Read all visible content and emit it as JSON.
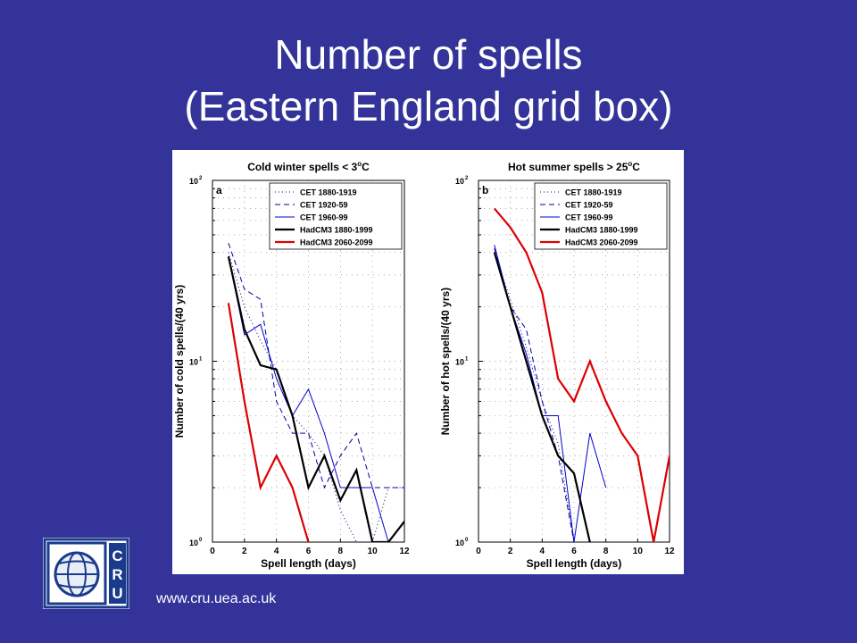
{
  "slide": {
    "title_line1": "Number of spells",
    "title_line2": "(Eastern England grid box)",
    "url": "www.cru.uea.ac.uk",
    "logo_text": [
      "C",
      "R",
      "U"
    ]
  },
  "chart_data": [
    {
      "type": "line",
      "panel_label": "a",
      "title": "Cold winter spells < 3°C",
      "title_parts": [
        "Cold winter spells < 3",
        "o",
        "C"
      ],
      "xlabel": "Spell length (days)",
      "ylabel": "Number of cold spells/(40 yrs)",
      "xlim": [
        0,
        12
      ],
      "ylim": [
        1,
        100
      ],
      "yscale": "log",
      "grid": true,
      "legend_position": "top-right",
      "xticks": [
        0,
        2,
        4,
        6,
        8,
        10,
        12
      ],
      "yticks": [
        {
          "base": "10",
          "exp": "0",
          "value": 1
        },
        {
          "base": "10",
          "exp": "1",
          "value": 10
        },
        {
          "base": "10",
          "exp": "2",
          "value": 100
        }
      ],
      "series": [
        {
          "name": "CET 1880-1919",
          "color": "#000080",
          "style": "dotted",
          "x": [
            1,
            2,
            3,
            4,
            5,
            6,
            7,
            8,
            9,
            10,
            11,
            12
          ],
          "y": [
            40,
            20,
            13,
            9,
            5,
            4,
            3,
            1.5,
            1,
            1,
            2,
            2
          ]
        },
        {
          "name": "CET 1920-59",
          "color": "#0000aa",
          "style": "dashed",
          "x": [
            1,
            2,
            3,
            4,
            5,
            6,
            7,
            8,
            9,
            10,
            11,
            12
          ],
          "y": [
            45,
            25,
            22,
            6,
            4,
            4,
            2,
            3,
            4,
            2,
            2,
            2
          ]
        },
        {
          "name": "CET 1960-99",
          "color": "#0000cc",
          "style": "solid-thin",
          "x": [
            1,
            2,
            3,
            4,
            5,
            6,
            7,
            8,
            9,
            10,
            11
          ],
          "y": [
            38,
            14,
            16,
            8,
            5,
            7,
            4,
            2,
            2,
            2,
            1
          ]
        },
        {
          "name": "HadCM3 1880-1999",
          "color": "#000000",
          "style": "solid-thick",
          "x": [
            1,
            2,
            3,
            4,
            5,
            6,
            7,
            8,
            9,
            10,
            11,
            12
          ],
          "y": [
            38,
            15,
            9.5,
            9,
            5,
            2,
            3,
            1.7,
            2.5,
            1,
            1,
            1.3
          ]
        },
        {
          "name": "HadCM3 2060-2099",
          "color": "#dd0000",
          "style": "solid-thick",
          "x": [
            1,
            2,
            3,
            4,
            5,
            6
          ],
          "y": [
            21,
            6,
            2,
            3,
            2,
            1
          ]
        }
      ]
    },
    {
      "type": "line",
      "panel_label": "b",
      "title": "Hot summer spells > 25°C",
      "title_parts": [
        "Hot summer spells > 25",
        "o",
        "C"
      ],
      "xlabel": "Spell length (days)",
      "ylabel": "Number of hot spells/(40 yrs)",
      "xlim": [
        0,
        12
      ],
      "ylim": [
        1,
        100
      ],
      "yscale": "log",
      "grid": true,
      "legend_position": "top-right",
      "xticks": [
        0,
        2,
        4,
        6,
        8,
        10,
        12
      ],
      "yticks": [
        {
          "base": "10",
          "exp": "0",
          "value": 1
        },
        {
          "base": "10",
          "exp": "1",
          "value": 10
        },
        {
          "base": "10",
          "exp": "2",
          "value": 100
        }
      ],
      "series": [
        {
          "name": "CET 1880-1919",
          "color": "#000080",
          "style": "dotted",
          "x": [
            1,
            2,
            3,
            4,
            5,
            6
          ],
          "y": [
            40,
            22,
            12,
            6,
            3.5,
            1
          ]
        },
        {
          "name": "CET 1920-59",
          "color": "#0000aa",
          "style": "dashed",
          "x": [
            1,
            2,
            3,
            4,
            5,
            6
          ],
          "y": [
            42,
            20,
            15,
            6,
            3,
            1
          ]
        },
        {
          "name": "CET 1960-99",
          "color": "#0000cc",
          "style": "solid-thin",
          "x": [
            1,
            2,
            3,
            4,
            5,
            6,
            7,
            8
          ],
          "y": [
            44,
            20,
            11,
            5,
            5,
            1,
            4,
            2
          ]
        },
        {
          "name": "HadCM3 1880-1999",
          "color": "#000000",
          "style": "solid-thick",
          "x": [
            1,
            2,
            3,
            4,
            5,
            6,
            7
          ],
          "y": [
            40,
            20,
            10,
            5,
            3,
            2.4,
            1
          ]
        },
        {
          "name": "HadCM3 2060-2099",
          "color": "#dd0000",
          "style": "solid-thick",
          "x": [
            1,
            2,
            3,
            4,
            5,
            6,
            7,
            8,
            9,
            10,
            11,
            12
          ],
          "y": [
            70,
            55,
            40,
            24,
            8,
            6,
            10,
            6,
            4,
            3,
            1,
            3
          ]
        }
      ]
    }
  ]
}
